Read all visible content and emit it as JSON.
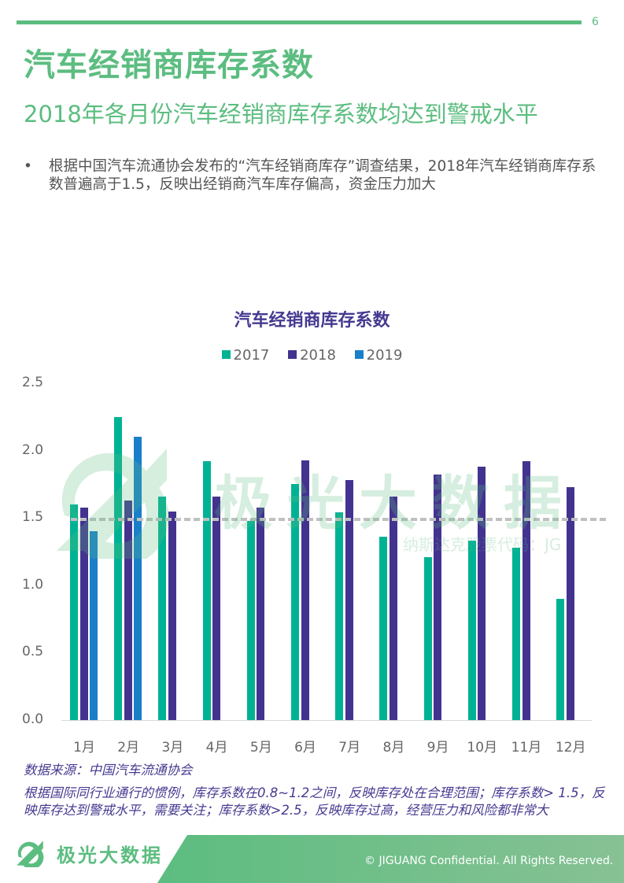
{
  "page": {
    "number": "6",
    "title": "汽车经销商库存系数",
    "subtitle": "2018年各月份汽车经销商库存系数均达到警戒水平",
    "bullet_symbol": "•",
    "bullet_text": "根据中国汽车流通协会发布的“汽车经销商库存”调查结果，2018年汽车经销商库存系数普遍高于1.5，反映出经销商汽车库存偏高，资金压力加大"
  },
  "watermark": {
    "text": "极光大数据",
    "sub": "纳斯达克股票代码：JG"
  },
  "chart_data": {
    "type": "bar",
    "title": "汽车经销商库存系数",
    "categories": [
      "1月",
      "2月",
      "3月",
      "4月",
      "5月",
      "6月",
      "7月",
      "8月",
      "9月",
      "10月",
      "11月",
      "12月"
    ],
    "series": [
      {
        "name": "2017",
        "color": "#00b294",
        "values": [
          1.6,
          2.25,
          1.66,
          1.92,
          1.48,
          1.75,
          1.54,
          1.36,
          1.21,
          1.33,
          1.28,
          0.9
        ]
      },
      {
        "name": "2018",
        "color": "#43338f",
        "values": [
          1.58,
          1.63,
          1.55,
          1.66,
          1.58,
          1.93,
          1.78,
          1.66,
          1.82,
          1.88,
          1.92,
          1.73
        ]
      },
      {
        "name": "2019",
        "color": "#1a7fc9",
        "values": [
          1.4,
          2.1,
          null,
          null,
          null,
          null,
          null,
          null,
          null,
          null,
          null,
          null
        ]
      }
    ],
    "yticks": [
      "0.0",
      "0.5",
      "1.0",
      "1.5",
      "2.0",
      "2.5"
    ],
    "ylim": [
      0,
      2.5
    ],
    "reference_line": {
      "value": 1.5,
      "style": "dashed",
      "color": "#c0c0c0"
    },
    "xlabel": "",
    "ylabel": "",
    "grid": false,
    "legend_position": "top"
  },
  "source": "数据来源：中国汽车流通协会",
  "note": "根据国际同行业通行的惯例，库存系数在0.8~1.2之间，反映库存处在合理范围；库存系数> 1.5，反映库存达到警戒水平，需要关注；库存系数>2.5，反映库存过高，经营压力和风险都非常大",
  "footer": {
    "brand": "极光大数据",
    "copyright": "© JIGUANG Confidential. All Rights Reserved."
  }
}
